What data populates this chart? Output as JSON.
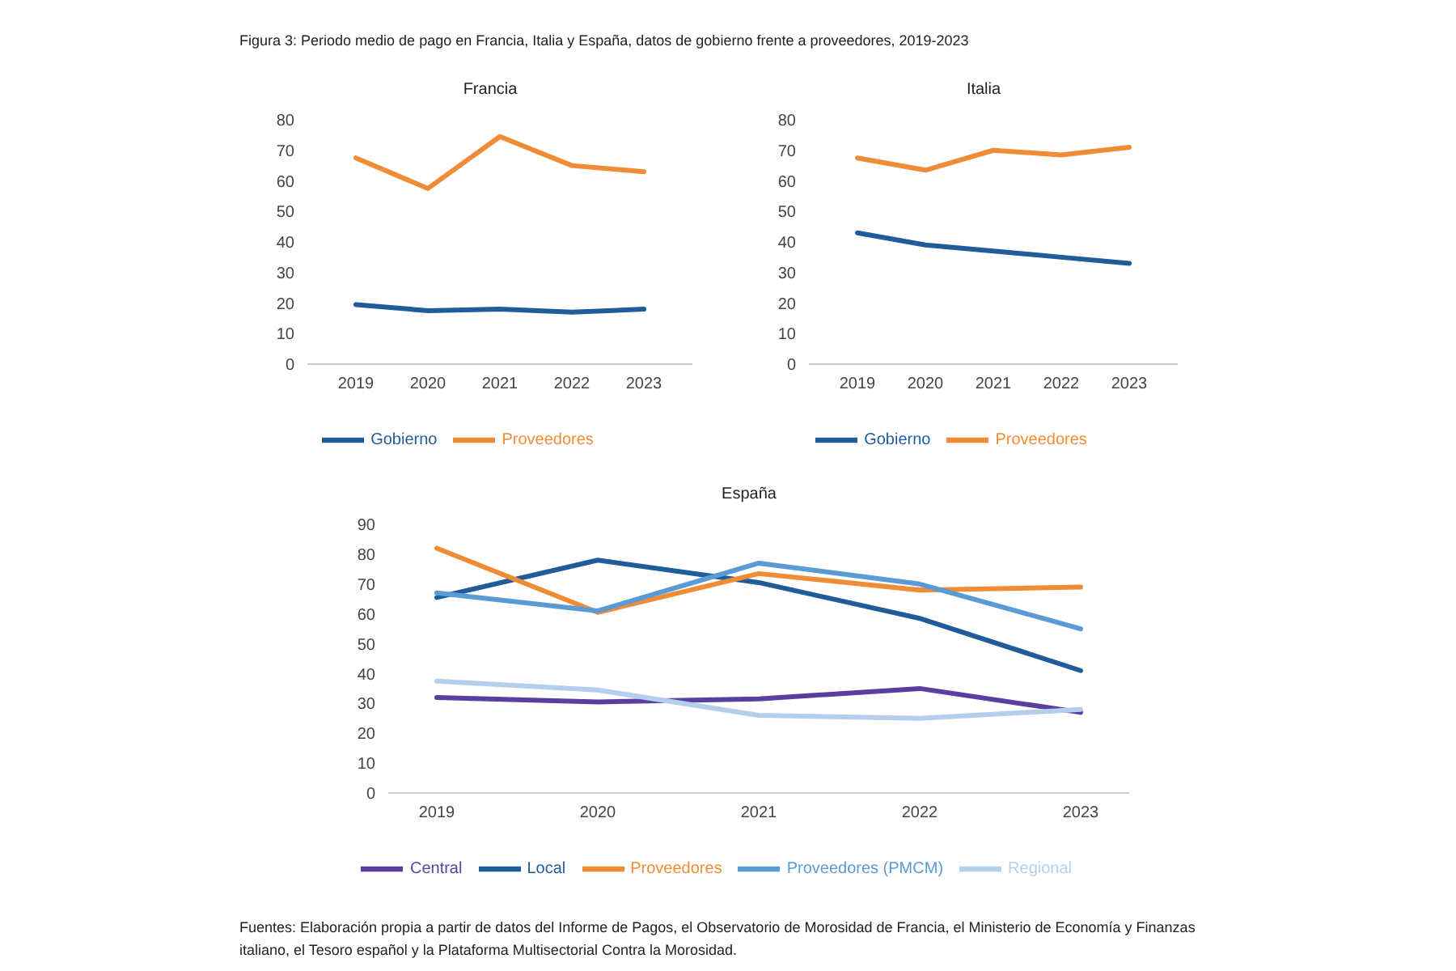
{
  "chart_data": [
    {
      "type": "line",
      "title": "Francia",
      "annotations": [
        "Figura 3: Periodo medio de pago en Francia, Italia y España, datos de gobierno frente a proveedores, 2019-2023"
      ],
      "categories": [
        "2019",
        "2020",
        "2021",
        "2022",
        "2023"
      ],
      "ylim": [
        0,
        80
      ],
      "yticks": [
        0,
        10,
        20,
        30,
        40,
        50,
        60,
        70,
        80
      ],
      "grid": false,
      "legend": "bottom",
      "marker": "none",
      "series": [
        {
          "name": "Gobierno",
          "color": "#1f5c99",
          "values": [
            19.5,
            17.5,
            18,
            17,
            18
          ]
        },
        {
          "name": "Proveedores",
          "color": "#f08c35",
          "values": [
            67.5,
            57.5,
            74.5,
            65,
            63
          ]
        }
      ]
    },
    {
      "type": "line",
      "title": "Italia",
      "categories": [
        "2019",
        "2020",
        "2021",
        "2022",
        "2023"
      ],
      "ylim": [
        0,
        80
      ],
      "yticks": [
        0,
        10,
        20,
        30,
        40,
        50,
        60,
        70,
        80
      ],
      "grid": false,
      "legend": "bottom",
      "marker": "none",
      "series": [
        {
          "name": "Gobierno",
          "color": "#1f5c99",
          "values": [
            43,
            39,
            37,
            35,
            33
          ]
        },
        {
          "name": "Proveedores",
          "color": "#f08c35",
          "values": [
            67.5,
            63.5,
            70,
            68.5,
            71
          ]
        }
      ]
    },
    {
      "type": "line",
      "title": "España",
      "annotations": [
        "Fuentes: Elaboración propia a partir de datos del Informe de Pagos, el Observatorio de Morosidad de Francia, el Ministerio de Economía y Finanzas italiano, el Tesoro español y la Plataforma Multisectorial Contra la Morosidad."
      ],
      "categories": [
        "2019",
        "2020",
        "2021",
        "2022",
        "2023"
      ],
      "ylim": [
        0,
        90
      ],
      "yticks": [
        0,
        10,
        20,
        30,
        40,
        50,
        60,
        70,
        80,
        90
      ],
      "grid": false,
      "legend": "bottom",
      "marker": "none",
      "series": [
        {
          "name": "Central",
          "color": "#5b3fa0",
          "values": [
            32,
            30.5,
            31.5,
            35,
            27
          ]
        },
        {
          "name": "Regional",
          "color": "#b4cfec",
          "values": [
            37.5,
            34.5,
            26,
            25,
            28
          ]
        },
        {
          "name": "Local",
          "color": "#1f5c99",
          "values": [
            65.5,
            78,
            70.5,
            58.5,
            41
          ]
        },
        {
          "name": "Proveedores",
          "color": "#f08c35",
          "values": [
            82,
            60.5,
            73.5,
            68,
            69
          ]
        },
        {
          "name": "Proveedores (PMCM)",
          "color": "#5b9bd5",
          "values": [
            67,
            61,
            77,
            70,
            55
          ]
        }
      ]
    }
  ]
}
